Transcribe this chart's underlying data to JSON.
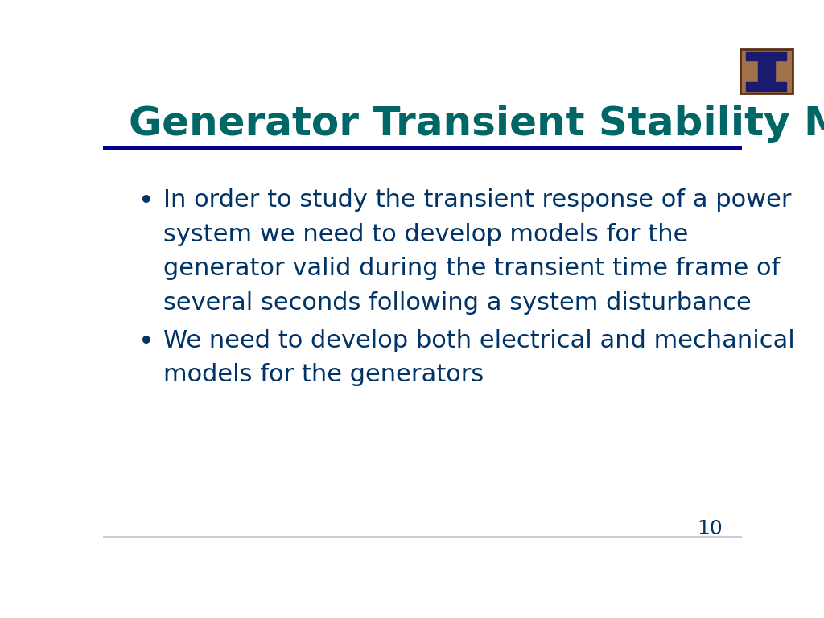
{
  "title": "Generator Transient Stability Models",
  "title_color": "#006666",
  "title_fontsize": 36,
  "title_fontstyle": "bold",
  "background_color": "#ffffff",
  "separator_color_top": "#00008B",
  "separator_color_bottom": "#ccccdd",
  "bullet_color": "#003366",
  "bullet_fontsize": 22,
  "bullets": [
    "In order to study the transient response of a power system we need to develop models for the generator valid during the transient time frame of several seconds following a system disturbance",
    "We need to develop both electrical and mechanical models for the generators"
  ],
  "bullet1_lines": [
    "In order to study the transient response of a power",
    "system we need to develop models for the",
    "generator valid during the transient time frame of",
    "several seconds following a system disturbance"
  ],
  "bullet2_lines": [
    "We need to develop both electrical and mechanical",
    "models for the generators"
  ],
  "page_number": "10",
  "page_number_color": "#003366",
  "page_number_fontsize": 18,
  "logo_bg_color": "#a0724a",
  "logo_border_color": "#5a3010",
  "logo_i_color": "#1a1a6e"
}
